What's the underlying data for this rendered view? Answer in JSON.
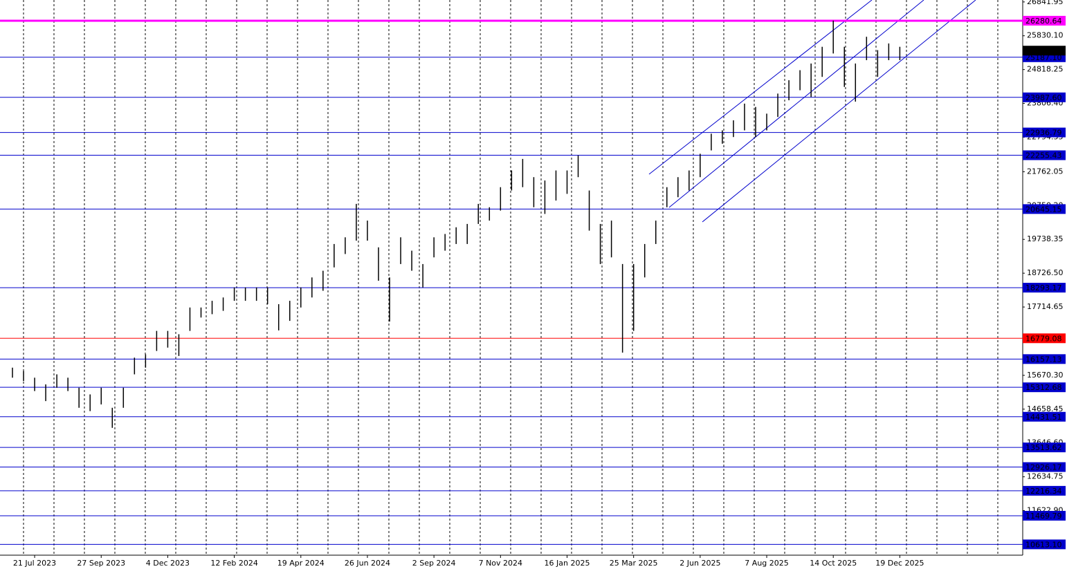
{
  "chart_data": {
    "type": "hilo",
    "color": "#000000",
    "categories": [
      null,
      null,
      "21 Jul 2023",
      null,
      null,
      null,
      null,
      null,
      "27 Sep 2023",
      null,
      null,
      null,
      null,
      null,
      "4 Dec 2023",
      null,
      null,
      null,
      null,
      null,
      "12 Feb 2024",
      null,
      null,
      null,
      null,
      null,
      "19 Apr 2024",
      null,
      null,
      null,
      null,
      null,
      "26 Jun 2024",
      null,
      null,
      null,
      null,
      null,
      "2 Sep 2024",
      null,
      null,
      null,
      null,
      null,
      "7 Nov 2024",
      null,
      null,
      null,
      null,
      null,
      "16 Jan 2025",
      null,
      null,
      null,
      null,
      null,
      "25 Mar 2025",
      null,
      null,
      null,
      null,
      null,
      "2 Jun 2025",
      null,
      null,
      null,
      null,
      null,
      "7 Aug 2025",
      null,
      null,
      null,
      null,
      null,
      "14 Oct 2025",
      null,
      null,
      null,
      null,
      null,
      "19 Dec 2025"
    ],
    "high": [
      15900,
      15800,
      15600,
      15400,
      15700,
      15600,
      15300,
      15100,
      15300,
      14700,
      15300,
      16200,
      16300,
      17000,
      17000,
      16900,
      17700,
      17700,
      17900,
      18000,
      18300,
      18300,
      18300,
      18300,
      17800,
      17900,
      18300,
      18600,
      18800,
      19600,
      19800,
      20800,
      20300,
      19500,
      18600,
      19800,
      19400,
      19000,
      19800,
      19900,
      20100,
      20200,
      20800,
      20700,
      21300,
      21800,
      22145,
      21600,
      21500,
      21800,
      21800,
      22250,
      21200,
      20200,
      20300,
      19000,
      19000,
      19600,
      20300,
      21300,
      21600,
      21800,
      22300,
      22900,
      23000,
      23300,
      23800,
      23700,
      23500,
      24100,
      24500,
      24800,
      25000,
      25500,
      26283,
      25500,
      25000,
      25800,
      25400,
      25600,
      25500
    ],
    "low": [
      15600,
      15500,
      15200,
      14900,
      15300,
      15200,
      14700,
      14600,
      14800,
      14100,
      14700,
      15700,
      15900,
      16400,
      16500,
      16250,
      17000,
      17400,
      17500,
      17600,
      17900,
      17900,
      17900,
      17800,
      17015,
      17300,
      17700,
      18000,
      18200,
      18900,
      19300,
      19700,
      19700,
      18500,
      17280,
      19000,
      18800,
      18300,
      19200,
      19400,
      19600,
      19600,
      20200,
      20300,
      20600,
      21200,
      21300,
      20700,
      20500,
      20900,
      21100,
      21600,
      20000,
      19000,
      19200,
      16350,
      17000,
      18600,
      19600,
      20700,
      21000,
      21200,
      21600,
      22400,
      22600,
      22800,
      23000,
      22800,
      23000,
      23400,
      23900,
      24200,
      24000,
      24600,
      25300,
      24300,
      23860,
      25100,
      24600,
      25100,
      25100
    ],
    "ylim": [
      10290,
      26900
    ],
    "yticks": [
      26841.95,
      {
        "value": 25830.1,
        "label": "25830.10"
      },
      24818.25,
      {
        "value": 23806.4,
        "label": "23806.40"
      },
      22794.55,
      21762.05,
      {
        "value": 20750.2,
        "label": "20750.20"
      },
      19738.35,
      {
        "value": 18726.5,
        "label": "18726.50"
      },
      17714.65,
      {
        "value": 15670.3,
        "label": "15670.30"
      },
      14658.45,
      {
        "value": 13646.6,
        "label": "13646.60"
      },
      12634.75,
      {
        "value": 11622.9,
        "label": "11622.90"
      }
    ],
    "levels": [
      {
        "value": 26280.64,
        "color": "#ff00ff"
      },
      {
        "value": 25187.1,
        "label": "25187.10",
        "color": "#0000cc"
      },
      {
        "value": 23987.6,
        "label": "23987.60",
        "color": "#0000cc"
      },
      {
        "value": 22936.79,
        "color": "#0000cc"
      },
      {
        "value": 22255.43,
        "color": "#0000cc"
      },
      {
        "value": 20645.15,
        "color": "#0000cc"
      },
      {
        "value": 18293.17,
        "color": "#0000cc"
      },
      {
        "value": 16779.08,
        "color": "#ff0000"
      },
      {
        "value": 16157.13,
        "color": "#0000cc"
      },
      {
        "value": 15312.68,
        "color": "#0000cc"
      },
      {
        "value": 14431.51,
        "color": "#0000cc"
      },
      {
        "value": 13513.62,
        "color": "#0000cc"
      },
      {
        "value": 12926.17,
        "color": "#0000cc"
      },
      {
        "value": 12216.34,
        "color": "#0000cc"
      },
      {
        "value": 11469.79,
        "color": "#0000cc"
      },
      {
        "value": 10613.1,
        "label": "10613.10",
        "color": "#0000cc"
      }
    ],
    "last_price": {
      "value": 25385.4,
      "label": "25385.40",
      "color": "#000000"
    }
  }
}
